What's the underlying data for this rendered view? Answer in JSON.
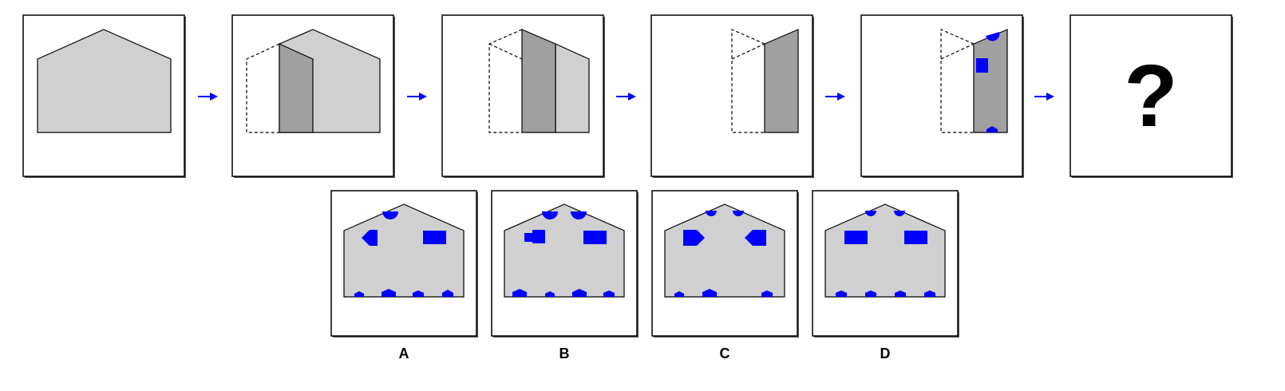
{
  "question_mark": "?",
  "options": [
    {
      "label": "A"
    },
    {
      "label": "B"
    },
    {
      "label": "C"
    },
    {
      "label": "D"
    }
  ],
  "colors": {
    "panel_fill": "#d0d0d0",
    "panel_dark": "#a0a0a0",
    "cutout_blue": "#0000ff",
    "arrow": "#0000ff"
  },
  "icons": [
    "right-arrow-icon",
    "question-mark-icon"
  ]
}
